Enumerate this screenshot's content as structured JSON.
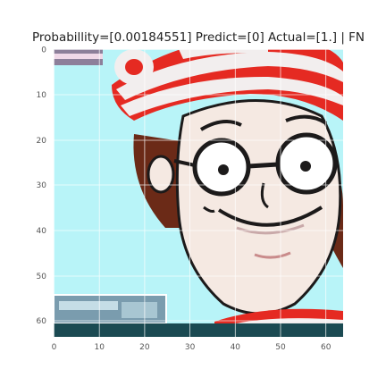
{
  "figure": {
    "title": "Probabillity=[0.00184551] Predict=[0] Actual=[1.] | FN",
    "image_subject": "cartoon face with red-and-white striped hat and round glasses",
    "x_ticks": [
      "0",
      "10",
      "20",
      "30",
      "40",
      "50",
      "60"
    ],
    "y_ticks": [
      "0",
      "10",
      "20",
      "30",
      "40",
      "50",
      "60"
    ],
    "grid": true,
    "colors": {
      "background_sky": "#b8f4f8",
      "hat_red": "#e52a22",
      "hat_white": "#f2eeee",
      "skin": "#f5e9e2",
      "hair": "#6b2a17",
      "outline": "#1c1a1a",
      "grid": "#ffffff",
      "tick_text": "#555555"
    }
  }
}
